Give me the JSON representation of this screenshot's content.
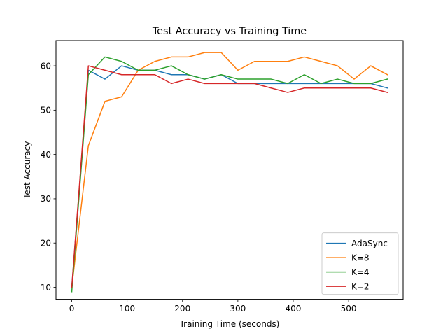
{
  "chart_data": {
    "type": "line",
    "title": "Test Accuracy vs Training Time",
    "xlabel": "Training Time (seconds)",
    "ylabel": "Test Accuracy",
    "xlim": [
      -28.5,
      598.5
    ],
    "ylim": [
      7.3,
      65.7
    ],
    "xticks": [
      0,
      100,
      200,
      300,
      400,
      500
    ],
    "yticks": [
      10,
      20,
      30,
      40,
      50,
      60
    ],
    "grid": false,
    "legend_position": "lower right",
    "x": [
      0,
      30,
      60,
      90,
      120,
      150,
      180,
      210,
      240,
      270,
      300,
      330,
      360,
      390,
      420,
      450,
      480,
      510,
      540,
      570
    ],
    "series": [
      {
        "name": "AdaSync",
        "color": "#1f77b4",
        "values": [
          10,
          59,
          57,
          60,
          59,
          59,
          58,
          58,
          57,
          58,
          56,
          56,
          56,
          56,
          56,
          56,
          56,
          56,
          56,
          55
        ]
      },
      {
        "name": "K=8",
        "color": "#ff7f0e",
        "values": [
          10,
          42,
          52,
          53,
          59,
          61,
          62,
          62,
          63,
          63,
          59,
          61,
          61,
          61,
          62,
          61,
          60,
          57,
          60,
          58
        ]
      },
      {
        "name": "K=4",
        "color": "#2ca02c",
        "values": [
          9,
          58,
          62,
          61,
          59,
          59,
          60,
          58,
          57,
          58,
          57,
          57,
          57,
          56,
          58,
          56,
          57,
          56,
          56,
          57
        ]
      },
      {
        "name": "K=2",
        "color": "#d62728",
        "values": [
          10,
          60,
          59,
          58,
          58,
          58,
          56,
          57,
          56,
          56,
          56,
          56,
          55,
          54,
          55,
          55,
          55,
          55,
          55,
          54
        ]
      }
    ]
  }
}
